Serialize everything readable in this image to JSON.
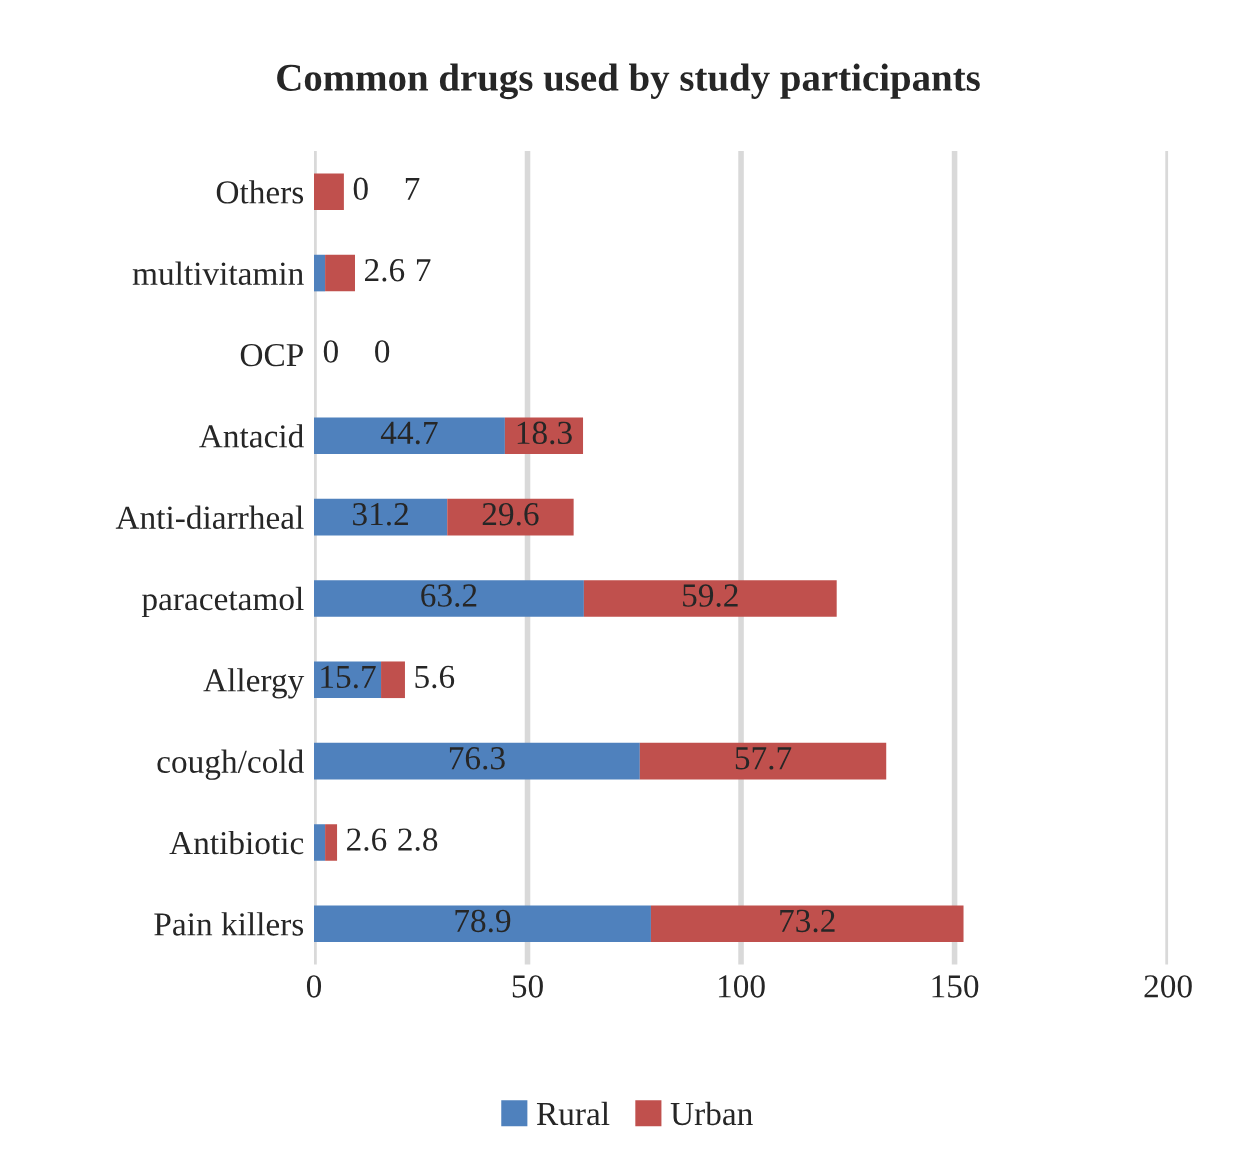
{
  "chart_data": {
    "type": "bar",
    "orientation": "horizontal",
    "stacked": true,
    "title": "Common drugs used by study participants",
    "categories": [
      "Others",
      "multivitamin",
      "OCP",
      "Antacid",
      "Anti-diarrheal",
      "paracetamol",
      "Allergy",
      "cough/cold",
      "Antibiotic",
      "Pain killers"
    ],
    "series": [
      {
        "name": "Rural",
        "color": "#4f81bd",
        "values": [
          0,
          2.6,
          0,
          44.7,
          31.2,
          63.2,
          15.7,
          76.3,
          2.6,
          78.9
        ]
      },
      {
        "name": "Urban",
        "color": "#c0504d",
        "values": [
          7,
          7,
          0,
          18.3,
          29.6,
          59.2,
          5.6,
          57.7,
          2.8,
          73.2
        ]
      }
    ],
    "xlim": [
      0,
      200
    ],
    "xticks": [
      0,
      50,
      100,
      150,
      200
    ],
    "grid": "x",
    "legend": "bottom",
    "data_labels": true
  }
}
